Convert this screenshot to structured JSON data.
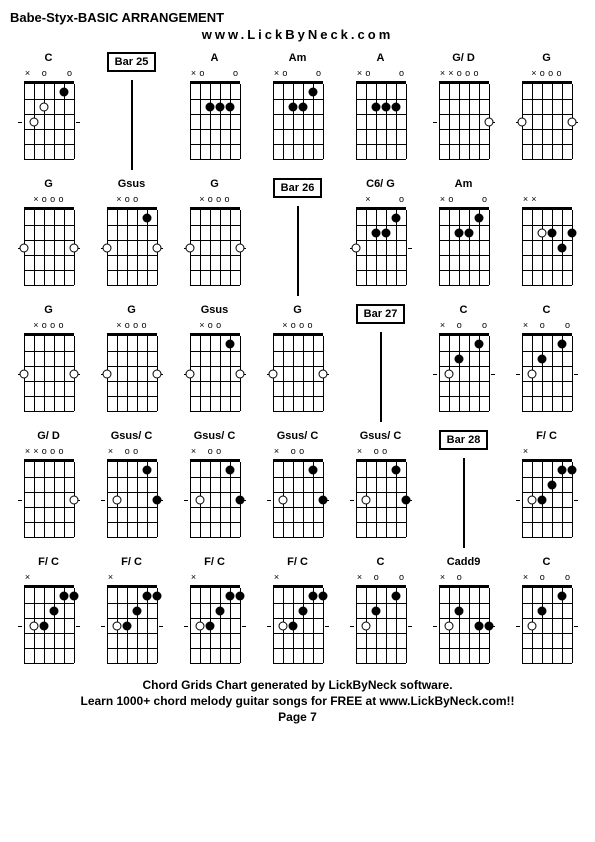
{
  "title": "Babe-Styx-BASIC ARRANGEMENT",
  "url": "www.LickByNeck.com",
  "footer": {
    "line1": "Chord Grids Chart generated by LickByNeck software.",
    "line2": "Learn 1000+ chord melody guitar songs for FREE at www.LickByNeck.com!!",
    "page": "Page 7"
  },
  "diagram_style": {
    "frets": 5,
    "strings": 6,
    "fret_height": 15,
    "string_spacing": 10,
    "dot_color": "#000000",
    "open_dot_border": "#000000",
    "line_color": "#000000"
  },
  "chords": [
    {
      "name": "C",
      "type": "chord",
      "top": [
        "x",
        "",
        "o",
        "",
        "",
        "o"
      ],
      "dots": [
        {
          "s": 4,
          "f": 2,
          "o": true
        },
        {
          "s": 2,
          "f": 1
        },
        {
          "s": 5,
          "f": 3,
          "o": true
        }
      ],
      "ticks": [
        3
      ]
    },
    {
      "name": "Bar 25",
      "type": "bar"
    },
    {
      "name": "A",
      "type": "chord",
      "top": [
        "x",
        "o",
        "",
        "",
        "",
        "o"
      ],
      "dots": [
        {
          "s": 4,
          "f": 2
        },
        {
          "s": 3,
          "f": 2
        },
        {
          "s": 2,
          "f": 2
        }
      ],
      "ticks": []
    },
    {
      "name": "Am",
      "type": "chord",
      "top": [
        "x",
        "o",
        "",
        "",
        "",
        "o"
      ],
      "dots": [
        {
          "s": 4,
          "f": 2
        },
        {
          "s": 3,
          "f": 2
        },
        {
          "s": 2,
          "f": 1
        }
      ],
      "ticks": []
    },
    {
      "name": "A",
      "type": "chord",
      "top": [
        "x",
        "o",
        "",
        "",
        "",
        "o"
      ],
      "dots": [
        {
          "s": 4,
          "f": 2
        },
        {
          "s": 3,
          "f": 2
        },
        {
          "s": 2,
          "f": 2
        }
      ],
      "ticks": []
    },
    {
      "name": "G/ D",
      "type": "chord",
      "top": [
        "x",
        "x",
        "o",
        "o",
        "o",
        ""
      ],
      "dots": [
        {
          "s": 1,
          "f": 3,
          "o": true
        }
      ],
      "ticks": [
        3
      ]
    },
    {
      "name": "G",
      "type": "chord",
      "top": [
        "",
        "x",
        "o",
        "o",
        "o",
        ""
      ],
      "dots": [
        {
          "s": 6,
          "f": 3,
          "o": true
        },
        {
          "s": 1,
          "f": 3,
          "o": true
        }
      ],
      "ticks": [
        3
      ]
    },
    {
      "name": "G",
      "type": "chord",
      "top": [
        "",
        "x",
        "o",
        "o",
        "o",
        ""
      ],
      "dots": [
        {
          "s": 6,
          "f": 3,
          "o": true
        },
        {
          "s": 1,
          "f": 3,
          "o": true
        }
      ],
      "ticks": [
        3
      ]
    },
    {
      "name": "Gsus",
      "type": "chord",
      "top": [
        "",
        "x",
        "o",
        "o",
        "",
        ""
      ],
      "dots": [
        {
          "s": 6,
          "f": 3,
          "o": true
        },
        {
          "s": 2,
          "f": 1
        },
        {
          "s": 1,
          "f": 3,
          "o": true
        }
      ],
      "ticks": [
        3
      ]
    },
    {
      "name": "G",
      "type": "chord",
      "top": [
        "",
        "x",
        "o",
        "o",
        "o",
        ""
      ],
      "dots": [
        {
          "s": 6,
          "f": 3,
          "o": true
        },
        {
          "s": 1,
          "f": 3,
          "o": true
        }
      ],
      "ticks": [
        3
      ]
    },
    {
      "name": "Bar 26",
      "type": "bar"
    },
    {
      "name": "C6/ G",
      "type": "chord",
      "top": [
        "",
        "x",
        "",
        "",
        "",
        "o"
      ],
      "dots": [
        {
          "s": 6,
          "f": 3,
          "o": true
        },
        {
          "s": 4,
          "f": 2
        },
        {
          "s": 3,
          "f": 2
        },
        {
          "s": 2,
          "f": 1
        }
      ],
      "ticks": [
        3
      ]
    },
    {
      "name": "Am",
      "type": "chord",
      "top": [
        "x",
        "o",
        "",
        "",
        "",
        "o"
      ],
      "dots": [
        {
          "s": 4,
          "f": 2
        },
        {
          "s": 3,
          "f": 2
        },
        {
          "s": 2,
          "f": 1
        }
      ],
      "ticks": []
    },
    {
      "name": "",
      "type": "chord",
      "top": [
        "x",
        "x",
        "",
        "",
        "",
        ""
      ],
      "dots": [
        {
          "s": 4,
          "f": 2,
          "o": true
        },
        {
          "s": 3,
          "f": 2
        },
        {
          "s": 2,
          "f": 3
        },
        {
          "s": 1,
          "f": 2
        }
      ],
      "ticks": []
    },
    {
      "name": "G",
      "type": "chord",
      "top": [
        "",
        "x",
        "o",
        "o",
        "o",
        ""
      ],
      "dots": [
        {
          "s": 6,
          "f": 3,
          "o": true
        },
        {
          "s": 1,
          "f": 3,
          "o": true
        }
      ],
      "ticks": [
        3
      ]
    },
    {
      "name": "G",
      "type": "chord",
      "top": [
        "",
        "x",
        "o",
        "o",
        "o",
        ""
      ],
      "dots": [
        {
          "s": 6,
          "f": 3,
          "o": true
        },
        {
          "s": 1,
          "f": 3,
          "o": true
        }
      ],
      "ticks": [
        3
      ]
    },
    {
      "name": "Gsus",
      "type": "chord",
      "top": [
        "",
        "x",
        "o",
        "o",
        "",
        ""
      ],
      "dots": [
        {
          "s": 6,
          "f": 3,
          "o": true
        },
        {
          "s": 2,
          "f": 1
        },
        {
          "s": 1,
          "f": 3,
          "o": true
        }
      ],
      "ticks": [
        3
      ]
    },
    {
      "name": "G",
      "type": "chord",
      "top": [
        "",
        "x",
        "o",
        "o",
        "o",
        ""
      ],
      "dots": [
        {
          "s": 6,
          "f": 3,
          "o": true
        },
        {
          "s": 1,
          "f": 3,
          "o": true
        }
      ],
      "ticks": [
        3
      ]
    },
    {
      "name": "Bar 27",
      "type": "bar"
    },
    {
      "name": "C",
      "type": "chord",
      "top": [
        "x",
        "",
        "o",
        "",
        "",
        "o"
      ],
      "dots": [
        {
          "s": 5,
          "f": 3,
          "o": true
        },
        {
          "s": 4,
          "f": 2
        },
        {
          "s": 2,
          "f": 1
        }
      ],
      "ticks": [
        3
      ]
    },
    {
      "name": "C",
      "type": "chord",
      "top": [
        "x",
        "",
        "o",
        "",
        "",
        "o"
      ],
      "dots": [
        {
          "s": 5,
          "f": 3,
          "o": true
        },
        {
          "s": 4,
          "f": 2
        },
        {
          "s": 2,
          "f": 1
        }
      ],
      "ticks": [
        3
      ]
    },
    {
      "name": "G/ D",
      "type": "chord",
      "top": [
        "x",
        "x",
        "o",
        "o",
        "o",
        ""
      ],
      "dots": [
        {
          "s": 1,
          "f": 3,
          "o": true
        }
      ],
      "ticks": [
        3
      ]
    },
    {
      "name": "Gsus/ C",
      "type": "chord",
      "top": [
        "x",
        "",
        "o",
        "o",
        "",
        ""
      ],
      "dots": [
        {
          "s": 5,
          "f": 3,
          "o": true
        },
        {
          "s": 2,
          "f": 1
        },
        {
          "s": 1,
          "f": 3
        }
      ],
      "ticks": [
        3
      ]
    },
    {
      "name": "Gsus/ C",
      "type": "chord",
      "top": [
        "x",
        "",
        "o",
        "o",
        "",
        ""
      ],
      "dots": [
        {
          "s": 5,
          "f": 3,
          "o": true
        },
        {
          "s": 2,
          "f": 1
        },
        {
          "s": 1,
          "f": 3
        }
      ],
      "ticks": [
        3
      ]
    },
    {
      "name": "Gsus/ C",
      "type": "chord",
      "top": [
        "x",
        "",
        "o",
        "o",
        "",
        ""
      ],
      "dots": [
        {
          "s": 5,
          "f": 3,
          "o": true
        },
        {
          "s": 2,
          "f": 1
        },
        {
          "s": 1,
          "f": 3
        }
      ],
      "ticks": [
        3
      ]
    },
    {
      "name": "Gsus/ C",
      "type": "chord",
      "top": [
        "x",
        "",
        "o",
        "o",
        "",
        ""
      ],
      "dots": [
        {
          "s": 5,
          "f": 3,
          "o": true
        },
        {
          "s": 2,
          "f": 1
        },
        {
          "s": 1,
          "f": 3
        }
      ],
      "ticks": [
        3
      ]
    },
    {
      "name": "Bar 28",
      "type": "bar"
    },
    {
      "name": "F/ C",
      "type": "chord",
      "top": [
        "x",
        "",
        "",
        "",
        "",
        ""
      ],
      "dots": [
        {
          "s": 5,
          "f": 3,
          "o": true
        },
        {
          "s": 4,
          "f": 3
        },
        {
          "s": 3,
          "f": 2
        },
        {
          "s": 2,
          "f": 1
        },
        {
          "s": 1,
          "f": 1
        }
      ],
      "ticks": [
        3
      ]
    },
    {
      "name": "F/ C",
      "type": "chord",
      "top": [
        "x",
        "",
        "",
        "",
        "",
        ""
      ],
      "dots": [
        {
          "s": 5,
          "f": 3,
          "o": true
        },
        {
          "s": 4,
          "f": 3
        },
        {
          "s": 3,
          "f": 2
        },
        {
          "s": 2,
          "f": 1
        },
        {
          "s": 1,
          "f": 1
        }
      ],
      "ticks": [
        3
      ]
    },
    {
      "name": "F/ C",
      "type": "chord",
      "top": [
        "x",
        "",
        "",
        "",
        "",
        ""
      ],
      "dots": [
        {
          "s": 5,
          "f": 3,
          "o": true
        },
        {
          "s": 4,
          "f": 3
        },
        {
          "s": 3,
          "f": 2
        },
        {
          "s": 2,
          "f": 1
        },
        {
          "s": 1,
          "f": 1
        }
      ],
      "ticks": [
        3
      ]
    },
    {
      "name": "F/ C",
      "type": "chord",
      "top": [
        "x",
        "",
        "",
        "",
        "",
        ""
      ],
      "dots": [
        {
          "s": 5,
          "f": 3,
          "o": true
        },
        {
          "s": 4,
          "f": 3
        },
        {
          "s": 3,
          "f": 2
        },
        {
          "s": 2,
          "f": 1
        },
        {
          "s": 1,
          "f": 1
        }
      ],
      "ticks": [
        3
      ]
    },
    {
      "name": "F/ C",
      "type": "chord",
      "top": [
        "x",
        "",
        "",
        "",
        "",
        ""
      ],
      "dots": [
        {
          "s": 5,
          "f": 3,
          "o": true
        },
        {
          "s": 4,
          "f": 3
        },
        {
          "s": 3,
          "f": 2
        },
        {
          "s": 2,
          "f": 1
        },
        {
          "s": 1,
          "f": 1
        }
      ],
      "ticks": [
        3
      ]
    },
    {
      "name": "C",
      "type": "chord",
      "top": [
        "x",
        "",
        "o",
        "",
        "",
        "o"
      ],
      "dots": [
        {
          "s": 5,
          "f": 3,
          "o": true
        },
        {
          "s": 4,
          "f": 2
        },
        {
          "s": 2,
          "f": 1
        }
      ],
      "ticks": [
        3
      ]
    },
    {
      "name": "Cadd9",
      "type": "chord",
      "top": [
        "x",
        "",
        "o",
        "",
        "",
        ""
      ],
      "dots": [
        {
          "s": 5,
          "f": 3,
          "o": true
        },
        {
          "s": 4,
          "f": 2
        },
        {
          "s": 2,
          "f": 3
        },
        {
          "s": 1,
          "f": 3
        }
      ],
      "ticks": [
        3
      ]
    },
    {
      "name": "C",
      "type": "chord",
      "top": [
        "x",
        "",
        "o",
        "",
        "",
        "o"
      ],
      "dots": [
        {
          "s": 5,
          "f": 3,
          "o": true
        },
        {
          "s": 4,
          "f": 2
        },
        {
          "s": 2,
          "f": 1
        }
      ],
      "ticks": [
        3
      ]
    }
  ]
}
